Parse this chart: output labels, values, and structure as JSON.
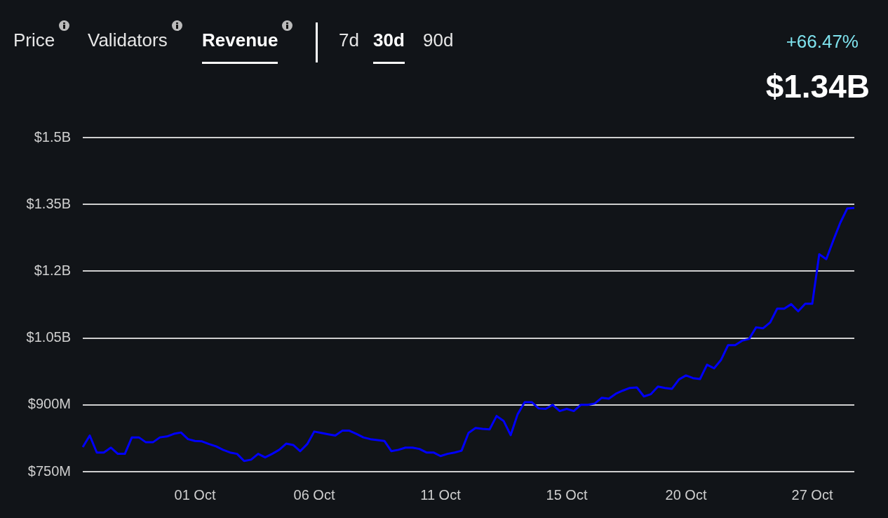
{
  "chart_data": {
    "type": "line",
    "annotations": [
      "Price",
      "Validators",
      "Revenue",
      "7d",
      "30d",
      "90d",
      "+66.47%",
      "$1.34B"
    ],
    "categories": [
      null,
      null,
      null,
      null,
      null,
      null,
      null,
      null,
      null,
      null,
      null,
      null,
      null,
      null,
      null,
      null,
      "01 Oct",
      null,
      null,
      null,
      null,
      null,
      null,
      null,
      null,
      null,
      null,
      null,
      null,
      null,
      null,
      null,
      null,
      "06 Oct",
      null,
      null,
      null,
      null,
      null,
      null,
      null,
      null,
      null,
      null,
      null,
      null,
      null,
      null,
      null,
      null,
      null,
      "11 Oct",
      null,
      null,
      null,
      null,
      null,
      null,
      null,
      null,
      null,
      null,
      null,
      null,
      null,
      null,
      null,
      null,
      null,
      "15 Oct",
      null,
      null,
      null,
      null,
      null,
      null,
      null,
      null,
      null,
      null,
      null,
      null,
      null,
      null,
      null,
      null,
      "20 Oct",
      null,
      null,
      null,
      null,
      null,
      null,
      null,
      null,
      null,
      null,
      null,
      null,
      null,
      null,
      null,
      null,
      null,
      "27 Oct",
      null,
      null,
      null,
      null,
      null,
      null
    ],
    "series": [
      {
        "color": "#0000ff",
        "values": [
          805000000,
          831000000,
          793000000,
          793000000,
          804000000,
          790000000,
          790000000,
          827000000,
          827000000,
          816000000,
          816000000,
          827000000,
          829000000,
          835000000,
          838000000,
          823000000,
          819000000,
          818000000,
          812000000,
          807000000,
          799000000,
          793000000,
          790000000,
          774000000,
          777000000,
          790000000,
          782000000,
          790000000,
          799000000,
          813000000,
          810000000,
          796000000,
          812000000,
          840000000,
          837000000,
          834000000,
          831000000,
          842000000,
          842000000,
          835000000,
          827000000,
          823000000,
          821000000,
          819000000,
          796000000,
          799000000,
          804000000,
          804000000,
          801000000,
          793000000,
          793000000,
          785000000,
          790000000,
          793000000,
          797000000,
          837000000,
          848000000,
          846000000,
          845000000,
          875000000,
          864000000,
          832000000,
          879000000,
          906000000,
          906000000,
          892000000,
          891000000,
          900000000,
          886000000,
          891000000,
          886000000,
          900000000,
          900000000,
          903000000,
          916000000,
          914000000,
          925000000,
          932000000,
          938000000,
          939000000,
          919000000,
          924000000,
          941000000,
          938000000,
          936000000,
          957000000,
          966000000,
          960000000,
          958000000,
          990000000,
          982000000,
          1001000000,
          1034000000,
          1034000000,
          1044000000,
          1048000000,
          1074000000,
          1072000000,
          1085000000,
          1116000000,
          1116000000,
          1126000000,
          1110000000,
          1127000000,
          1127000000,
          1238000000,
          1227000000,
          1269000000,
          1309000000,
          1341000000,
          1342000000
        ]
      }
    ],
    "ylim": [
      750000000,
      1500000000
    ],
    "yticks": [
      {
        "value": 750000000,
        "label": "$750M"
      },
      {
        "value": 900000000,
        "label": "$900M"
      },
      {
        "value": 1050000000,
        "label": "$1.05B"
      },
      {
        "value": 1200000000,
        "label": "$1.2B"
      },
      {
        "value": 1350000000,
        "label": "$1.35B"
      },
      {
        "value": 1500000000,
        "label": "$1.5B"
      }
    ],
    "grid": "y",
    "legend": false,
    "marker": "none",
    "line_style": "solid"
  }
}
